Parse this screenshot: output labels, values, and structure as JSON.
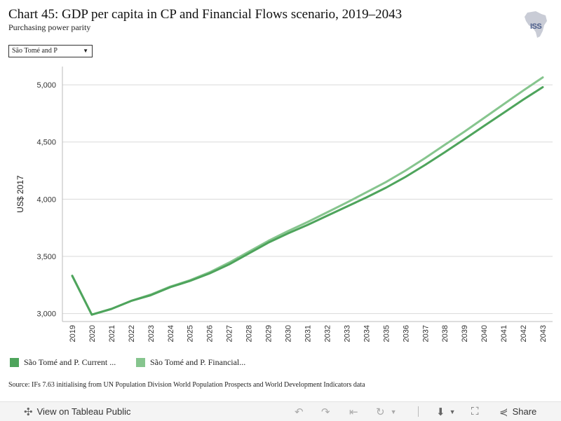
{
  "header": {
    "title": "Chart 45: GDP per capita in CP and Financial Flows scenario, 2019–2043",
    "subtitle": "Purchasing power parity",
    "logo_text": "ISS"
  },
  "filter": {
    "selected": "São Tomé and P"
  },
  "chart_data": {
    "type": "line",
    "title": "Chart 45: GDP per capita in CP and Financial Flows scenario, 2019–2043",
    "subtitle": "Purchasing power parity",
    "ylabel": "US$ 2017",
    "xlabel": "",
    "x": [
      "2019",
      "2020",
      "2021",
      "2022",
      "2023",
      "2024",
      "2025",
      "2026",
      "2027",
      "2028",
      "2029",
      "2030",
      "2031",
      "2032",
      "2033",
      "2034",
      "2035",
      "2036",
      "2037",
      "2038",
      "2039",
      "2040",
      "2041",
      "2042",
      "2043"
    ],
    "ylim": [
      2930,
      5160
    ],
    "yticks": [
      3000,
      3500,
      4000,
      4500,
      5000
    ],
    "ytick_labels": [
      "3,000",
      "3,500",
      "4,000",
      "4,500",
      "5,000"
    ],
    "grid": true,
    "legend_position": "bottom",
    "series": [
      {
        "name": "São Tomé and P. Current ...",
        "color": "#4ea45c",
        "values": [
          3330,
          2990,
          3040,
          3110,
          3160,
          3230,
          3285,
          3350,
          3430,
          3525,
          3620,
          3700,
          3775,
          3855,
          3935,
          4015,
          4100,
          4195,
          4300,
          4410,
          4525,
          4640,
          4755,
          4870,
          4980
        ]
      },
      {
        "name": "São Tomé and P. Financial...",
        "color": "#86c58e",
        "values": [
          3330,
          2990,
          3040,
          3110,
          3165,
          3235,
          3290,
          3360,
          3445,
          3540,
          3635,
          3720,
          3800,
          3885,
          3970,
          4060,
          4150,
          4250,
          4360,
          4475,
          4590,
          4710,
          4830,
          4950,
          5065
        ]
      }
    ]
  },
  "legend": {
    "items": [
      {
        "label": "São Tomé and P. Current ...",
        "color": "#4ea45c"
      },
      {
        "label": "São Tomé and P. Financial...",
        "color": "#86c58e"
      }
    ]
  },
  "source": "Source: IFs 7.63 initialising from UN Population Division World Population Prospects and World Development Indicators data",
  "toolbar": {
    "view_label": "View on Tableau Public",
    "share_label": "Share",
    "icons": [
      "tableau-icon",
      "undo-icon",
      "redo-icon",
      "revert-icon",
      "refresh-icon",
      "download-icon",
      "fullscreen-icon",
      "share-icon"
    ]
  }
}
